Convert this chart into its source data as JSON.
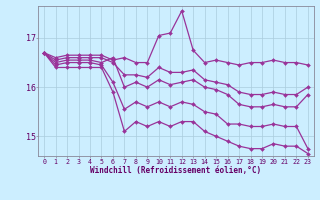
{
  "xlabel": "Windchill (Refroidissement éolien,°C)",
  "background_color": "#cceeff",
  "grid_color": "#aaccdd",
  "line_color": "#993399",
  "xlim": [
    -0.5,
    23.5
  ],
  "ylim": [
    14.6,
    17.65
  ],
  "yticks": [
    15,
    16,
    17
  ],
  "xticks": [
    0,
    1,
    2,
    3,
    4,
    5,
    6,
    7,
    8,
    9,
    10,
    11,
    12,
    13,
    14,
    15,
    16,
    17,
    18,
    19,
    20,
    21,
    22,
    23
  ],
  "lines": [
    [
      16.7,
      16.6,
      16.65,
      16.65,
      16.65,
      16.65,
      16.55,
      16.6,
      16.5,
      16.5,
      17.05,
      17.1,
      17.55,
      16.75,
      16.5,
      16.55,
      16.5,
      16.45,
      16.5,
      16.5,
      16.55,
      16.5,
      16.5,
      16.45
    ],
    [
      16.7,
      16.55,
      16.6,
      16.6,
      16.6,
      16.6,
      16.5,
      16.25,
      16.25,
      16.2,
      16.4,
      16.3,
      16.3,
      16.35,
      16.15,
      16.1,
      16.05,
      15.9,
      15.85,
      15.85,
      15.9,
      15.85,
      15.85,
      16.0
    ],
    [
      16.7,
      16.5,
      16.55,
      16.55,
      16.55,
      16.5,
      16.6,
      16.0,
      16.1,
      16.0,
      16.15,
      16.05,
      16.1,
      16.15,
      16.0,
      15.95,
      15.85,
      15.65,
      15.6,
      15.6,
      15.65,
      15.6,
      15.6,
      15.85
    ],
    [
      16.7,
      16.45,
      16.5,
      16.5,
      16.5,
      16.45,
      16.1,
      15.55,
      15.7,
      15.6,
      15.7,
      15.6,
      15.7,
      15.65,
      15.5,
      15.45,
      15.25,
      15.25,
      15.2,
      15.2,
      15.25,
      15.2,
      15.2,
      14.75
    ],
    [
      16.7,
      16.4,
      16.4,
      16.4,
      16.4,
      16.4,
      15.9,
      15.1,
      15.3,
      15.2,
      15.3,
      15.2,
      15.3,
      15.3,
      15.1,
      15.0,
      14.9,
      14.8,
      14.75,
      14.75,
      14.85,
      14.8,
      14.8,
      14.65
    ]
  ]
}
